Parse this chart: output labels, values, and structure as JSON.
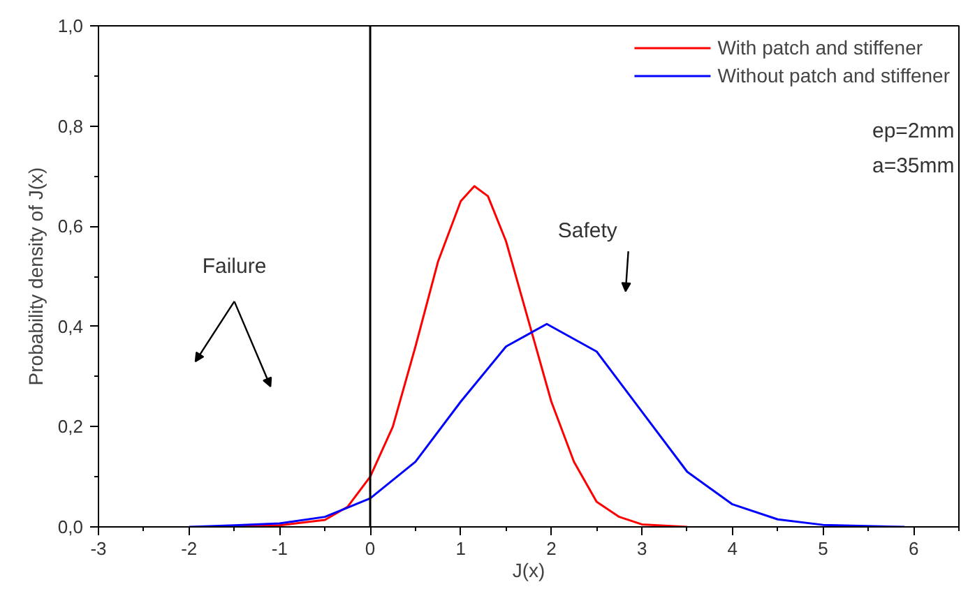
{
  "chart_data": {
    "type": "line",
    "xlabel": "J(x)",
    "ylabel": "Probability density of J(x)",
    "series": [
      {
        "name": "With patch and stiffener",
        "color": "#ff0000",
        "x": [
          -1.5,
          -1,
          -0.5,
          -0.25,
          0,
          0.25,
          0.5,
          0.75,
          1.0,
          1.15,
          1.3,
          1.5,
          1.75,
          2.0,
          2.25,
          2.5,
          2.75,
          3.0,
          3.5
        ],
        "values": [
          0,
          0.003,
          0.014,
          0.04,
          0.1,
          0.2,
          0.36,
          0.53,
          0.65,
          0.68,
          0.66,
          0.57,
          0.41,
          0.25,
          0.13,
          0.05,
          0.02,
          0.005,
          0
        ]
      },
      {
        "name": "Without patch and stiffener",
        "color": "#0000ff",
        "x": [
          -2,
          -1.5,
          -1,
          -0.5,
          0,
          0.5,
          1,
          1.5,
          1.95,
          2.5,
          3,
          3.5,
          4,
          4.5,
          5,
          5.9
        ],
        "values": [
          0,
          0.003,
          0.007,
          0.02,
          0.057,
          0.13,
          0.25,
          0.36,
          0.405,
          0.35,
          0.23,
          0.11,
          0.045,
          0.015,
          0.004,
          0
        ]
      }
    ],
    "xlim": [
      -3,
      6.5
    ],
    "xticks": [
      -3,
      -2,
      -1,
      0,
      1,
      2,
      3,
      4,
      5,
      6
    ],
    "ylim": [
      0,
      1
    ],
    "yticks": [
      {
        "value": 0,
        "label": "0,0"
      },
      {
        "value": 0.2,
        "label": "0,2"
      },
      {
        "value": 0.4,
        "label": "0,4"
      },
      {
        "value": 0.6,
        "label": "0,6"
      },
      {
        "value": 0.8,
        "label": "0,8"
      },
      {
        "value": 1,
        "label": "1,0"
      }
    ],
    "ref_lines": [
      {
        "axis": "x",
        "value": 0,
        "color": "#000000"
      }
    ],
    "annotations": [
      "ep=2mm",
      "a=35mm",
      "Failure",
      "Safety"
    ],
    "legend": "top right",
    "grid": false,
    "line_style": "solid",
    "marker": "none"
  }
}
